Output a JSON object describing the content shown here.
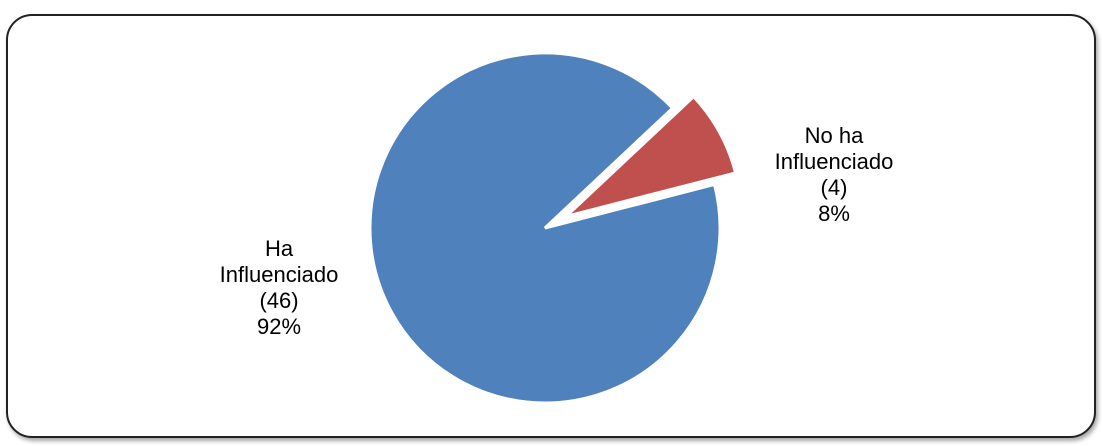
{
  "chart_data": {
    "type": "pie",
    "title": "",
    "slices": [
      {
        "name_lines": [
          "Ha",
          "Influenciado"
        ],
        "count_label": "(46)",
        "percent_label": "92%",
        "value": 46,
        "percent": 92,
        "color": "#4F81BD"
      },
      {
        "name_lines": [
          "No ha",
          "Influenciado"
        ],
        "count_label": "(4)",
        "percent_label": "8%",
        "value": 4,
        "percent": 8,
        "color": "#C0504D",
        "exploded": true
      }
    ],
    "legend": "none"
  }
}
